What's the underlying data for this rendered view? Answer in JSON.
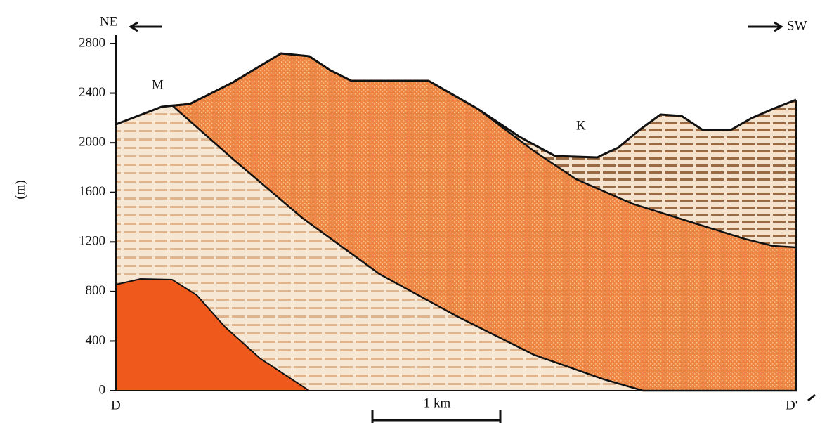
{
  "labels": {
    "left_direction": "NE",
    "right_direction": "SW",
    "peak": "M",
    "valley": "K",
    "start": "D",
    "end": "D'",
    "scale": "1 km"
  },
  "axis": {
    "label": "(m)",
    "ticks": [
      0,
      400,
      800,
      1200,
      1600,
      2000,
      2400,
      2800
    ]
  }
}
